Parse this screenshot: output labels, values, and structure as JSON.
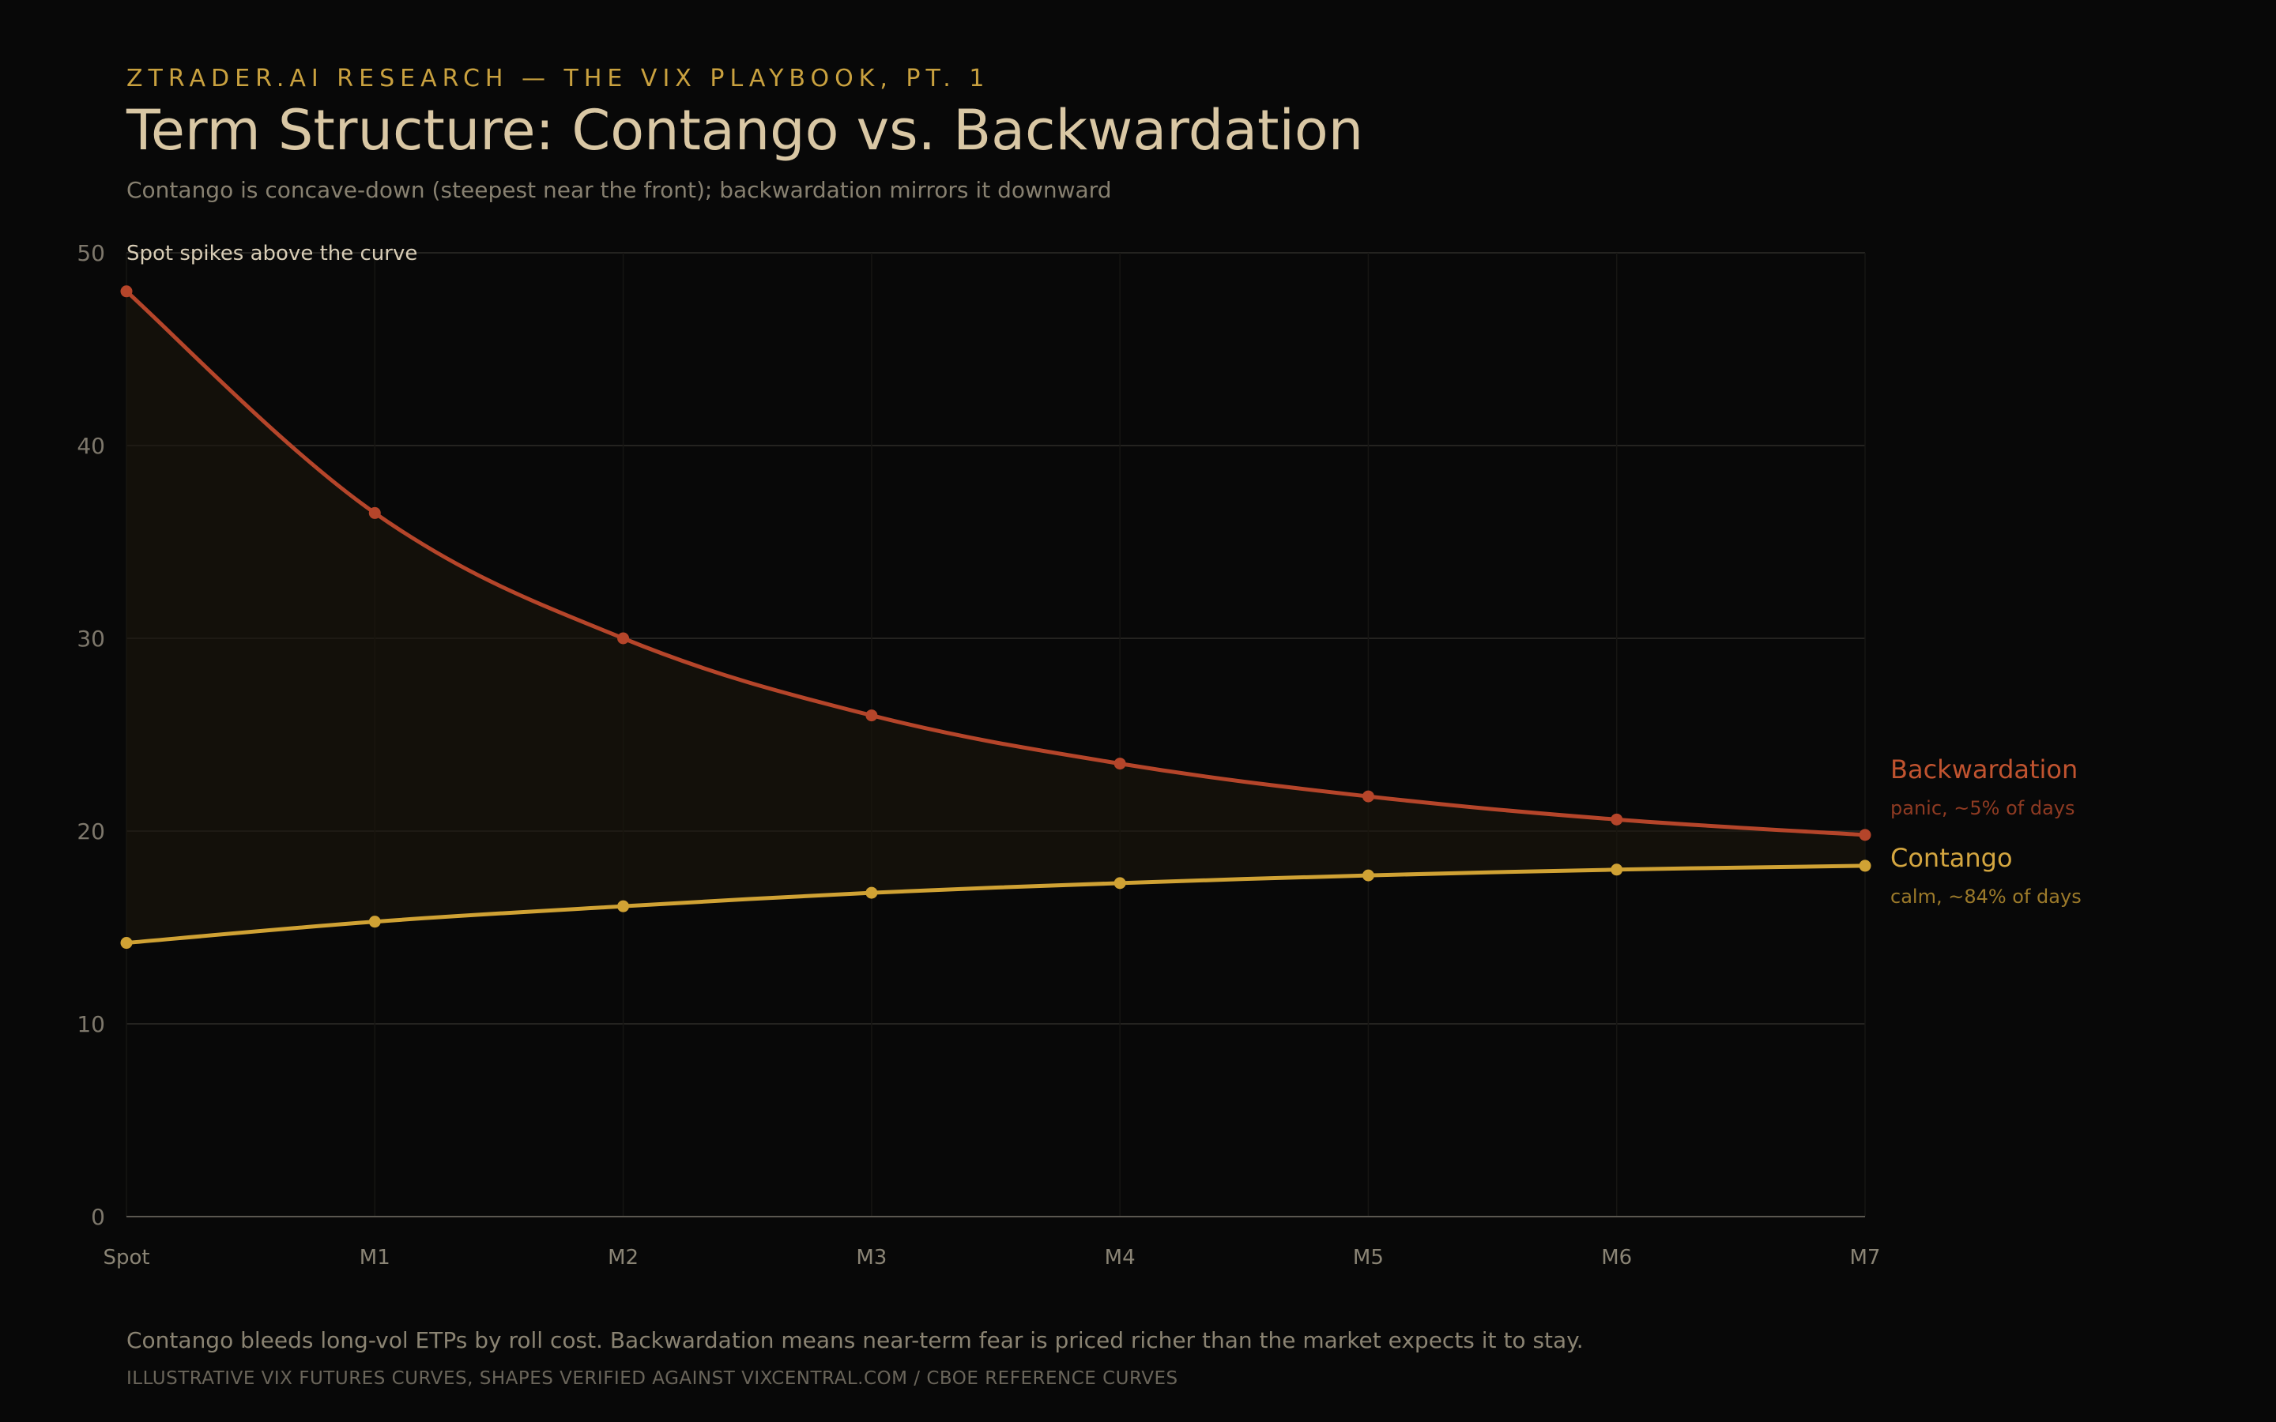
{
  "header": {
    "kicker": "ZTRADER.AI RESEARCH — THE VIX PLAYBOOK, PT. 1",
    "title": "Term Structure: Contango vs. Backwardation",
    "subtitle": "Contango is concave-down (steepest near the front); backwardation mirrors it downward"
  },
  "chart_data": {
    "type": "line",
    "categories": [
      "Spot",
      "M1",
      "M2",
      "M3",
      "M4",
      "M5",
      "M6",
      "M7"
    ],
    "ylim": [
      0,
      50
    ],
    "yticks": [
      0,
      10,
      20,
      30,
      40,
      50
    ],
    "grid": true,
    "legend_placement": "right, beside line ends",
    "annotation": "Spot spikes above the curve",
    "series": [
      {
        "name": "Backwardation",
        "note": "panic, ~5% of days",
        "color": "#b5452a",
        "values": [
          48.0,
          36.5,
          30.0,
          26.0,
          23.5,
          21.8,
          20.6,
          19.8
        ]
      },
      {
        "name": "Contango",
        "note": "calm, ~84% of days",
        "color": "#d0a234",
        "values": [
          14.2,
          15.3,
          16.1,
          16.8,
          17.3,
          17.7,
          18.0,
          18.2
        ]
      }
    ]
  },
  "footer": {
    "note": "Contango bleeds long-vol ETPs by roll cost. Backwardation means near-term fear is priced richer than the market expects it to stay.",
    "source": "ILLUSTRATIVE VIX FUTURES CURVES, SHAPES VERIFIED AGAINST VIXCENTRAL.COM / CBOE REFERENCE CURVES"
  }
}
